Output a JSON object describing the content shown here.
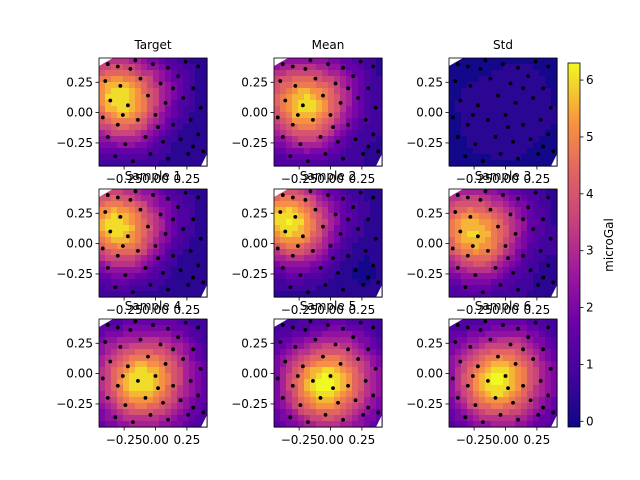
{
  "chart_data": {
    "type": "heatmap",
    "colormap": "plasma",
    "colorbar": {
      "label": "microGal",
      "ticks": [
        0,
        1,
        2,
        3,
        4,
        5,
        6
      ],
      "tick_labels": [
        "0",
        "1",
        "2",
        "3",
        "4",
        "5",
        "6"
      ],
      "range": [
        -0.1,
        6.3
      ]
    },
    "grid": false,
    "xlim": [
      -0.45,
      0.41
    ],
    "ylim": [
      -0.44,
      0.45
    ],
    "x_tick_values": [
      -0.25,
      0.0,
      0.25
    ],
    "x_tick_labels": [
      "−0.25",
      "0.00",
      "0.25"
    ],
    "y_tick_values": [
      0.25,
      0.0,
      -0.25
    ],
    "y_tick_labels": [
      "0.25",
      "0.00",
      "−0.25"
    ],
    "panels": [
      {
        "title": "Target",
        "field": {
          "peak": 6.2,
          "center": [
            -0.28,
            0.12
          ],
          "spread": 0.55,
          "floor": 0.2
        },
        "show_x_ticks": true,
        "show_y_ticks": true
      },
      {
        "title": "Mean",
        "field": {
          "peak": 6.0,
          "center": [
            -0.2,
            0.08
          ],
          "spread": 0.55,
          "floor": 0.3
        },
        "show_x_ticks": true,
        "show_y_ticks": true
      },
      {
        "title": "Std",
        "field": {
          "peak": 0.5,
          "center": [
            0.0,
            0.0
          ],
          "spread": 0.6,
          "floor": 0.0
        },
        "show_x_ticks": true,
        "show_y_ticks": true
      },
      {
        "title": "Sample 1",
        "field": {
          "peak": 6.1,
          "center": [
            -0.3,
            0.15
          ],
          "spread": 0.55,
          "floor": 0.2
        },
        "show_x_ticks": true,
        "show_y_ticks": true
      },
      {
        "title": "Sample 2",
        "field": {
          "peak": 6.3,
          "center": [
            -0.32,
            0.18
          ],
          "spread": 0.52,
          "floor": 0.2
        },
        "show_x_ticks": true,
        "show_y_ticks": true
      },
      {
        "title": "Sample 3",
        "field": {
          "peak": 5.9,
          "center": [
            -0.25,
            0.1
          ],
          "spread": 0.56,
          "floor": 0.3
        },
        "show_x_ticks": true,
        "show_y_ticks": true
      },
      {
        "title": "Sample 4",
        "field": {
          "peak": 6.0,
          "center": [
            -0.1,
            -0.05
          ],
          "spread": 0.6,
          "floor": 0.3
        },
        "show_x_ticks": true,
        "show_y_ticks": true
      },
      {
        "title": "Sample 5",
        "field": {
          "peak": 6.3,
          "center": [
            -0.02,
            -0.08
          ],
          "spread": 0.58,
          "floor": 0.3
        },
        "show_x_ticks": true,
        "show_y_ticks": true
      },
      {
        "title": "Sample 6",
        "field": {
          "peak": 6.2,
          "center": [
            -0.05,
            -0.05
          ],
          "spread": 0.58,
          "floor": 0.3
        },
        "show_x_ticks": true,
        "show_y_ticks": true
      }
    ],
    "stations": [
      [
        -0.38,
        0.4
      ],
      [
        -0.3,
        0.38
      ],
      [
        -0.16,
        0.43
      ],
      [
        -0.02,
        0.4
      ],
      [
        0.1,
        0.37
      ],
      [
        0.24,
        0.42
      ],
      [
        0.34,
        0.38
      ],
      [
        -0.4,
        0.26
      ],
      [
        -0.28,
        0.22
      ],
      [
        -0.12,
        0.28
      ],
      [
        0.04,
        0.24
      ],
      [
        0.18,
        0.3
      ],
      [
        0.3,
        0.2
      ],
      [
        -0.36,
        0.1
      ],
      [
        -0.22,
        0.06
      ],
      [
        -0.06,
        0.14
      ],
      [
        0.08,
        0.08
      ],
      [
        0.22,
        0.12
      ],
      [
        0.36,
        0.04
      ],
      [
        -0.42,
        -0.04
      ],
      [
        -0.3,
        -0.1
      ],
      [
        -0.14,
        -0.06
      ],
      [
        0.0,
        -0.02
      ],
      [
        0.14,
        -0.1
      ],
      [
        0.28,
        -0.06
      ],
      [
        -0.38,
        -0.2
      ],
      [
        -0.24,
        -0.26
      ],
      [
        -0.08,
        -0.2
      ],
      [
        0.06,
        -0.24
      ],
      [
        0.2,
        -0.22
      ],
      [
        0.34,
        -0.18
      ],
      [
        -0.32,
        -0.36
      ],
      [
        -0.18,
        -0.4
      ],
      [
        -0.04,
        -0.34
      ],
      [
        0.1,
        -0.38
      ],
      [
        0.26,
        -0.34
      ],
      [
        0.38,
        -0.32
      ],
      [
        -0.2,
        0.36
      ],
      [
        0.14,
        0.2
      ],
      [
        -0.26,
        -0.02
      ],
      [
        0.02,
        -0.12
      ],
      [
        0.3,
        -0.28
      ]
    ]
  }
}
